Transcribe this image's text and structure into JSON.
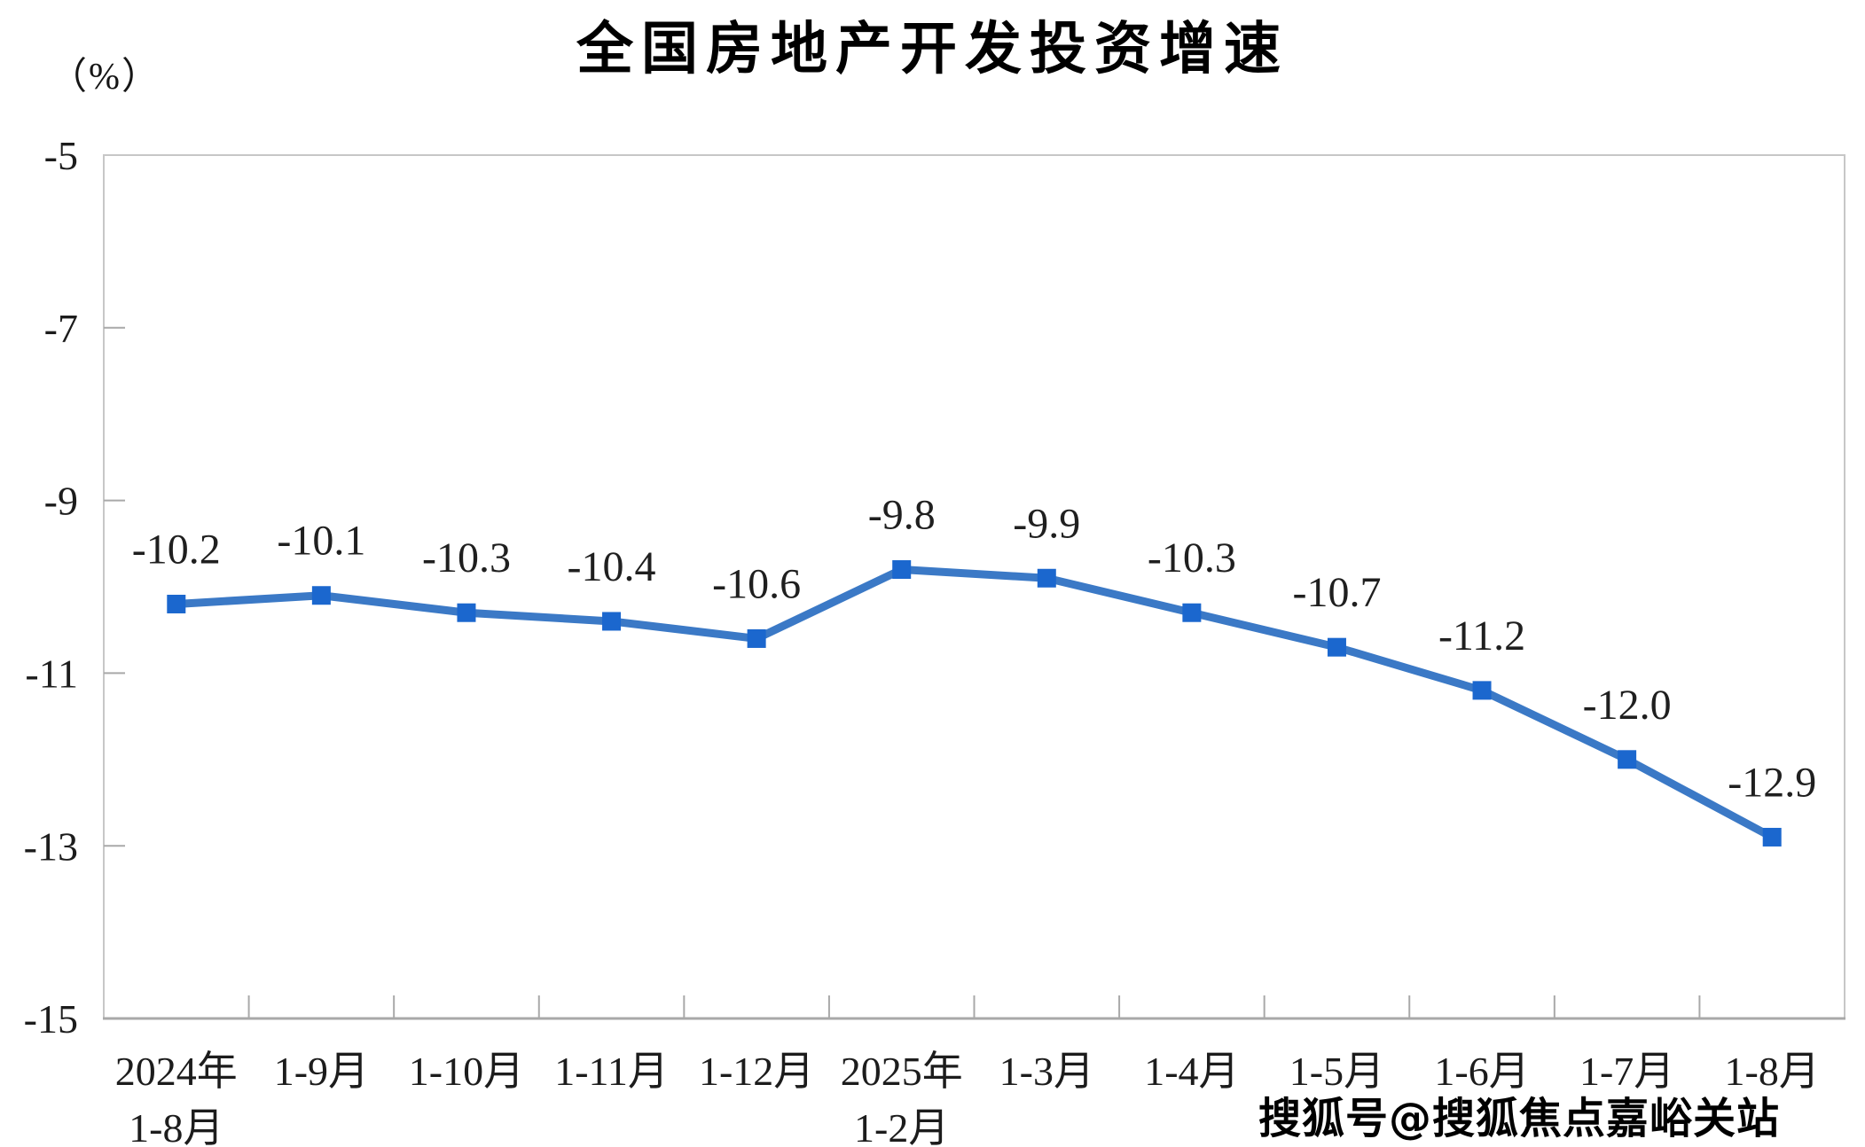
{
  "title": "全国房地产开发投资增速",
  "axis_unit_label": "（%）",
  "watermark": "搜狐号@搜狐焦点嘉峪关站",
  "chart_data": {
    "type": "line",
    "title": "全国房地产开发投资增速",
    "unit": "%",
    "categories": [
      "2024年\n1-8月",
      "1-9月",
      "1-10月",
      "1-11月",
      "1-12月",
      "2025年\n1-2月",
      "1-3月",
      "1-4月",
      "1-5月",
      "1-6月",
      "1-7月",
      "1-8月"
    ],
    "values": [
      -10.2,
      -10.1,
      -10.3,
      -10.4,
      -10.6,
      -9.8,
      -9.9,
      -10.3,
      -10.7,
      -11.2,
      -12.0,
      -12.9
    ],
    "value_labels": [
      "-10.2",
      "-10.1",
      "-10.3",
      "-10.4",
      "-10.6",
      "-9.8",
      "-9.9",
      "-10.3",
      "-10.7",
      "-11.2",
      "-12.0",
      "-12.9"
    ],
    "y_ticks": [
      -5,
      -7,
      -9,
      -11,
      -13,
      -15
    ],
    "y_tick_labels": [
      "-5",
      "-7",
      "-9",
      "-11",
      "-13",
      "-15"
    ],
    "ylim": [
      -15,
      -5
    ],
    "grid": false,
    "legend": "none",
    "line_color": "#3B79C6",
    "marker_color": "#1B67CE",
    "border_color": "#C7C7C7",
    "tick_color": "#A9A9A9"
  }
}
